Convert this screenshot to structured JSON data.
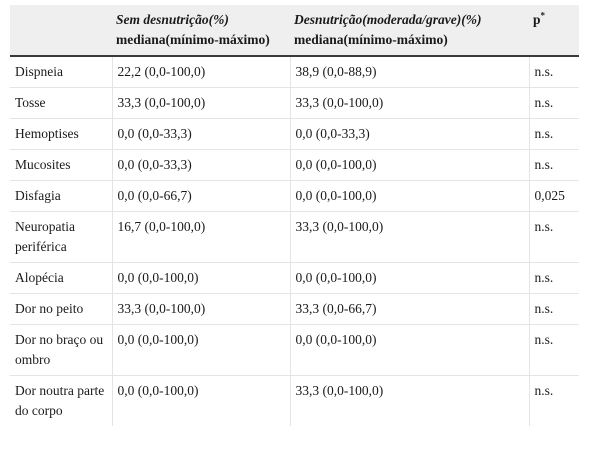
{
  "table": {
    "headers": {
      "col1": "",
      "col2_italic": "Sem desnutrição(%)",
      "col2_rest": "mediana(mínimo-máximo)",
      "col3_italic": "Desnutrição(moderada/grave)(%)",
      "col3_rest": "mediana(mínimo-máximo)",
      "col4": "p",
      "col4_sup": "*"
    },
    "rows": [
      {
        "symptom": "Dispneia",
        "no_malnutrition": "22,2 (0,0-100,0)",
        "malnutrition": "38,9 (0,0-88,9)",
        "p": "n.s."
      },
      {
        "symptom": "Tosse",
        "no_malnutrition": "33,3 (0,0-100,0)",
        "malnutrition": "33,3 (0,0-100,0)",
        "p": "n.s."
      },
      {
        "symptom": "Hemoptises",
        "no_malnutrition": "0,0 (0,0-33,3)",
        "malnutrition": "0,0 (0,0-33,3)",
        "p": "n.s."
      },
      {
        "symptom": "Mucosites",
        "no_malnutrition": "0,0 (0,0-33,3)",
        "malnutrition": "0,0 (0,0-100,0)",
        "p": "n.s."
      },
      {
        "symptom": "Disfagia",
        "no_malnutrition": "0,0 (0,0-66,7)",
        "malnutrition": "0,0 (0,0-100,0)",
        "p": "0,025"
      },
      {
        "symptom": "Neuropatia periférica",
        "no_malnutrition": "16,7 (0,0-100,0)",
        "malnutrition": "33,3 (0,0-100,0)",
        "p": "n.s."
      },
      {
        "symptom": "Alopécia",
        "no_malnutrition": "0,0 (0,0-100,0)",
        "malnutrition": "0,0 (0,0-100,0)",
        "p": "n.s."
      },
      {
        "symptom": "Dor no peito",
        "no_malnutrition": "33,3 (0,0-100,0)",
        "malnutrition": "33,3 (0,0-66,7)",
        "p": "n.s."
      },
      {
        "symptom": "Dor no braço ou ombro",
        "no_malnutrition": "0,0 (0,0-100,0)",
        "malnutrition": "0,0 (0,0-100,0)",
        "p": "n.s."
      },
      {
        "symptom": "Dor noutra parte do corpo",
        "no_malnutrition": "0,0 (0,0-100,0)",
        "malnutrition": "33,3 (0,0-100,0)",
        "p": "n.s."
      }
    ]
  }
}
